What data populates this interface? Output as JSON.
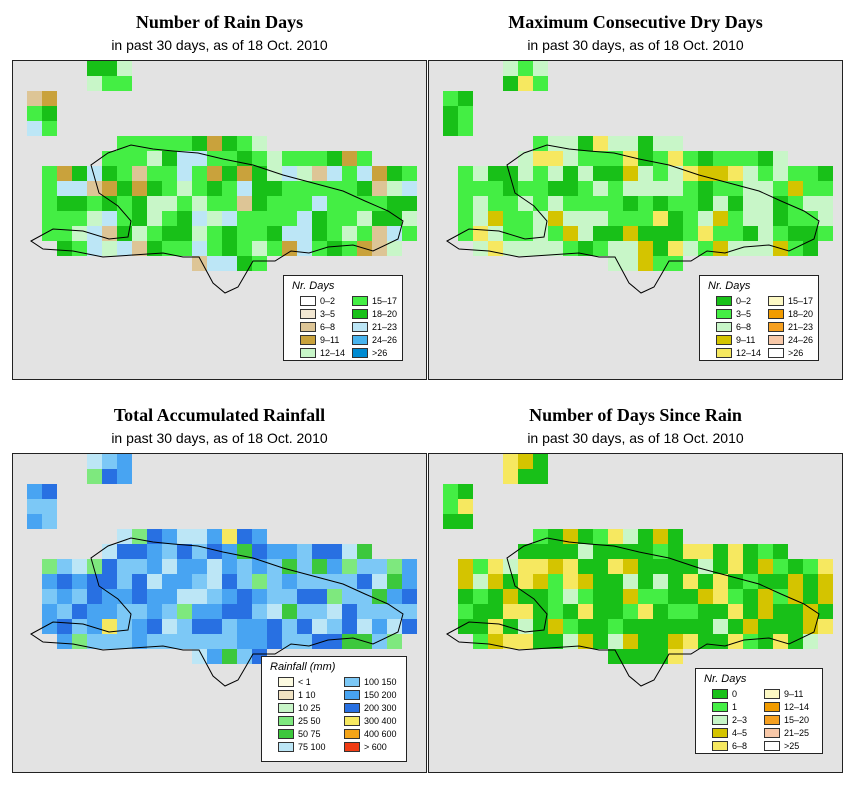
{
  "panels": [
    {
      "id": "rain-days",
      "title": "Number of Rain Days",
      "subtitle": "in past 30 days, as of  18 Oct. 2010",
      "legend": {
        "title": "Nr. Days",
        "items": [
          {
            "label": "0–2",
            "color": "#ffffff"
          },
          {
            "label": "3–5",
            "color": "#f2e7d2"
          },
          {
            "label": "6–8",
            "color": "#ddc596"
          },
          {
            "label": "9–11",
            "color": "#c9a23c"
          },
          {
            "label": "12–14",
            "color": "#c8f6c8"
          },
          {
            "label": "15–17",
            "color": "#44ee44"
          },
          {
            "label": "18–20",
            "color": "#18c018"
          },
          {
            "label": "21–23",
            "color": "#bce6f6"
          },
          {
            "label": "24–26",
            "color": "#48b4ee"
          },
          {
            "label": ">26",
            "color": "#008bd2"
          }
        ]
      }
    },
    {
      "id": "dry-days",
      "title": "Maximum Consecutive Dry Days",
      "subtitle": "in past 30 days, as of  18 Oct. 2010",
      "legend": {
        "title": "Nr. Days",
        "items": [
          {
            "label": "0–2",
            "color": "#18c018"
          },
          {
            "label": "3–5",
            "color": "#44ee44"
          },
          {
            "label": "6–8",
            "color": "#c8f6c8"
          },
          {
            "label": "9–11",
            "color": "#d4c400"
          },
          {
            "label": "12–14",
            "color": "#f6e860"
          },
          {
            "label": "15–17",
            "color": "#fcf8c4"
          },
          {
            "label": "18–20",
            "color": "#f29c00"
          },
          {
            "label": "21–23",
            "color": "#f6a020"
          },
          {
            "label": "24–26",
            "color": "#f8c8a8"
          },
          {
            "label": ">26",
            "color": "#ffffff"
          }
        ]
      }
    },
    {
      "id": "rainfall",
      "title": "Total Accumulated Rainfall",
      "subtitle": "in past 30 days, as of  18 Oct. 2010",
      "legend": {
        "title": "Rainfall (mm)",
        "items": [
          {
            "label": "< 1",
            "color": "#fcfae0"
          },
          {
            "label": "1    10",
            "color": "#f0e2c2"
          },
          {
            "label": "10    25",
            "color": "#c8f6c8"
          },
          {
            "label": "25    50",
            "color": "#7ee87e"
          },
          {
            "label": "50    75",
            "color": "#3cc83c"
          },
          {
            "label": "75  100",
            "color": "#bce6f6"
          },
          {
            "label": "100  150",
            "color": "#7cc8f6"
          },
          {
            "label": "150  200",
            "color": "#48a4f2"
          },
          {
            "label": "200  300",
            "color": "#2870e2"
          },
          {
            "label": "300  400",
            "color": "#f6e860"
          },
          {
            "label": "400  600",
            "color": "#f4a418"
          },
          {
            "label": "> 600",
            "color": "#f03c14"
          }
        ]
      }
    },
    {
      "id": "since-rain",
      "title": "Number of Days Since Rain",
      "subtitle": "in past 30 days, as of  18 Oct. 2010",
      "legend": {
        "title": "Nr. Days",
        "items": [
          {
            "label": "0",
            "color": "#18c018"
          },
          {
            "label": "1",
            "color": "#44ee44"
          },
          {
            "label": "2–3",
            "color": "#c8f6c8"
          },
          {
            "label": "4–5",
            "color": "#d4c400"
          },
          {
            "label": "6–8",
            "color": "#f6e860"
          },
          {
            "label": "9–11",
            "color": "#fcf8c4"
          },
          {
            "label": "12–14",
            "color": "#f29c00"
          },
          {
            "label": "15–20",
            "color": "#f6a020"
          },
          {
            "label": "21–25",
            "color": "#f8c8a8"
          },
          {
            "label": ">25",
            "color": "#ffffff"
          }
        ]
      }
    }
  ]
}
